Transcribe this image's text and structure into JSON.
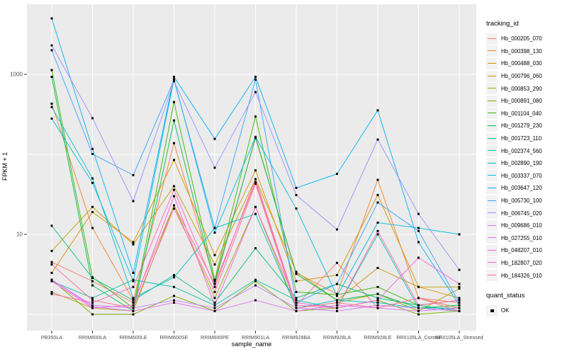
{
  "chart_data": {
    "type": "line",
    "xlabel": "sample_name",
    "ylabel": "FPKM + 1",
    "y_scale": "log10",
    "y_ticks": [
      {
        "label": "1000",
        "value": 1000
      },
      {
        "label": "10",
        "value": 10
      }
    ],
    "y_gridlines": [
      1,
      10,
      100,
      1000
    ],
    "ylim_log": [
      0.63,
      7500
    ],
    "grid": "on",
    "panel_bg": "#EBEBEB",
    "grid_color": "#FFFFFF",
    "tick_label_color": "#4D4D4D",
    "point_shape": "square",
    "point_color": "#000000",
    "legend_position": "right",
    "categories": [
      "PB350LA",
      "RRIM600LA",
      "RRIM600LE",
      "RRIM600SE",
      "RRIM600PE",
      "RRIM901LA",
      "RRIM928BA",
      "RRIM928LA",
      "RRIM928LE",
      "RRII105LA_Control",
      "RRII105LA_Stressed"
    ],
    "series": [
      {
        "name": "Hb_000205_070",
        "color": "#F8766D",
        "values": [
          4.5,
          2.6,
          1.4,
          23,
          2.4,
          45,
          1.3,
          4.4,
          1.2,
          1.6,
          1.4
        ]
      },
      {
        "name": "Hb_000398_130",
        "color": "#EA8331",
        "values": [
          430,
          12,
          1.5,
          138,
          2.6,
          160,
          3.3,
          1.8,
          48,
          1.6,
          1.2
        ]
      },
      {
        "name": "Hb_000488_030",
        "color": "#D89000",
        "values": [
          3.3,
          19,
          8,
          85,
          5.5,
          63,
          2.6,
          3.1,
          31,
          2.2,
          1.6
        ]
      },
      {
        "name": "Hb_000796_060",
        "color": "#C09B00",
        "values": [
          6.2,
          22,
          7.5,
          40,
          4.2,
          49,
          3.4,
          1.5,
          3.8,
          2.2,
          2.2
        ]
      },
      {
        "name": "Hb_000853_290",
        "color": "#A3A500",
        "values": [
          1.9,
          1.2,
          1.1,
          23,
          1.6,
          22,
          1.2,
          1.4,
          1.8,
          1.1,
          2.1
        ]
      },
      {
        "name": "Hb_000891_080",
        "color": "#7CAE00",
        "values": [
          2.7,
          1.0,
          1.0,
          1.7,
          1.1,
          2.6,
          1.1,
          1.2,
          1.5,
          1.0,
          1.1
        ]
      },
      {
        "name": "Hb_001104_040",
        "color": "#39B600",
        "values": [
          1130,
          2.9,
          1.2,
          450,
          2.7,
          297,
          1.9,
          1.76,
          2.2,
          1.3,
          1.5
        ]
      },
      {
        "name": "Hb_001279_230",
        "color": "#00BB4E",
        "values": [
          930,
          2.3,
          1.1,
          265,
          2.4,
          165,
          3.2,
          1.5,
          1.8,
          1.2,
          1.3
        ]
      },
      {
        "name": "Hb_001723_110",
        "color": "#00BF7D",
        "values": [
          12.8,
          2.85,
          1.5,
          3.1,
          1.4,
          6.7,
          1.6,
          2.4,
          1.6,
          1.3,
          1.1
        ]
      },
      {
        "name": "Hb_002374_560",
        "color": "#00C1A3",
        "values": [
          2.6,
          1.6,
          2.7,
          2.2,
          1.3,
          2.7,
          1.5,
          1.2,
          10,
          1.2,
          1.2
        ]
      },
      {
        "name": "Hb_002890_190",
        "color": "#00BFC4",
        "values": [
          390,
          50,
          1.6,
          2.9,
          12,
          18,
          1.2,
          1.5,
          1.4,
          1.2,
          1.1
        ]
      },
      {
        "name": "Hb_003337_070",
        "color": "#00BAE0",
        "values": [
          280,
          44,
          2.6,
          870,
          10.5,
          165,
          21,
          1.7,
          14,
          12,
          10
        ]
      },
      {
        "name": "Hb_003647_120",
        "color": "#00B0F6",
        "values": [
          5000,
          117,
          3.3,
          930,
          156,
          930,
          38,
          57,
          355,
          8,
          1.3
        ]
      },
      {
        "name": "Hb_005730_100",
        "color": "#35A2FF",
        "values": [
          2000,
          101,
          55,
          850,
          12,
          860,
          1.4,
          2.4,
          25,
          11,
          1.4
        ]
      },
      {
        "name": "Hb_006745_020",
        "color": "#9590FF",
        "values": [
          2300,
          283,
          26,
          820,
          68,
          600,
          31,
          11.5,
          153,
          18,
          3.6
        ]
      },
      {
        "name": "Hb_009686_010",
        "color": "#C77CFF",
        "values": [
          2.7,
          1.3,
          1.2,
          1.5,
          1.2,
          2.3,
          1.2,
          1.1,
          1.3,
          1.2,
          1.1
        ]
      },
      {
        "name": "Hb_027255_010",
        "color": "#E76BF3",
        "values": [
          2.7,
          1.25,
          1.1,
          1.4,
          1.1,
          1.5,
          1.1,
          1.3,
          1.2,
          1.1,
          1.2
        ]
      },
      {
        "name": "Hb_048207_010",
        "color": "#FA62DB",
        "values": [
          2.6,
          1.2,
          1.3,
          30,
          1.3,
          22,
          1.4,
          1.2,
          1.5,
          5.1,
          2.4
        ]
      },
      {
        "name": "Hb_182807_020",
        "color": "#FF62BC",
        "values": [
          1.8,
          1.4,
          2.2,
          36,
          2.2,
          49,
          1.3,
          1.2,
          11,
          1.3,
          1.5
        ]
      },
      {
        "name": "Hb_184326_010",
        "color": "#FF6A98",
        "values": [
          4.2,
          1.5,
          1.2,
          21,
          1.9,
          43,
          1.2,
          1.4,
          1.2,
          1.6,
          1.1
        ]
      }
    ],
    "legend_title": "tracking_id",
    "legend2_title": "quant_status",
    "legend2_items": [
      {
        "label": "OK"
      }
    ]
  }
}
